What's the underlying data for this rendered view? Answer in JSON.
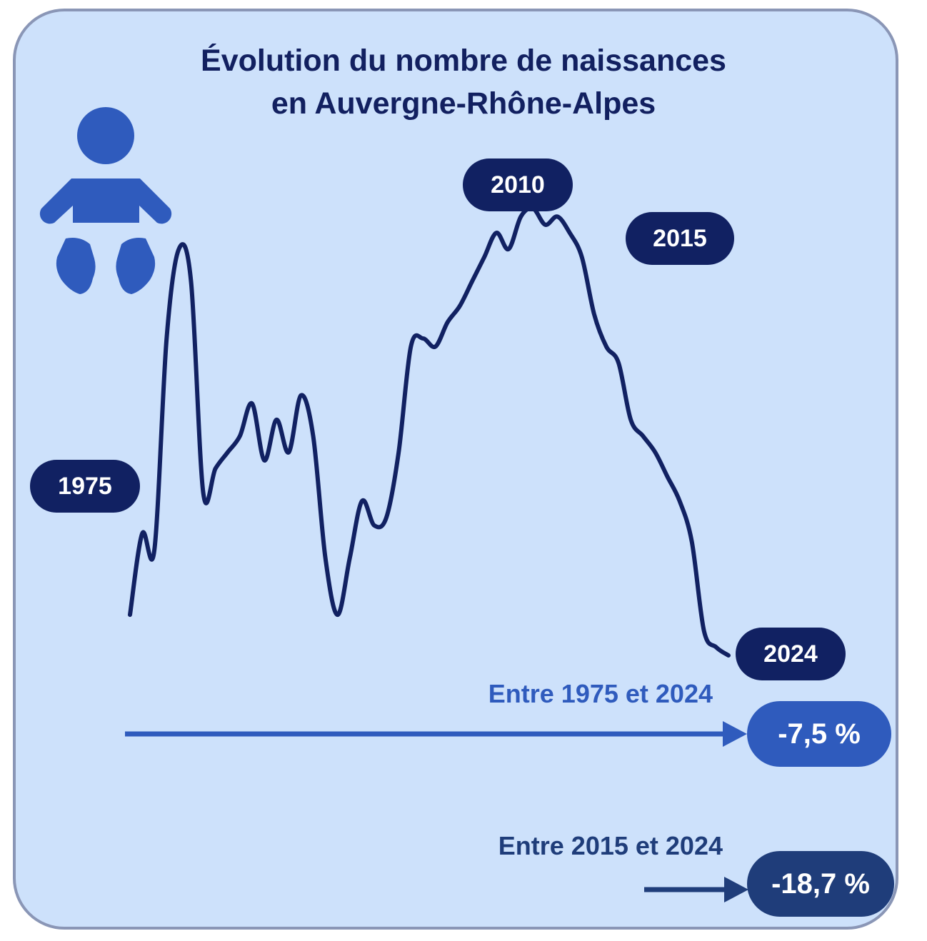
{
  "title": {
    "line1": "Évolution du nombre de naissances",
    "line2": "en Auvergne-Rhône-Alpes"
  },
  "icon": "baby-icon",
  "colors": {
    "background": "#cde1fb",
    "border": "#8a96b6",
    "navy": "#112162",
    "accent_blue": "#2f5bbd",
    "dark_blue": "#1f3d7a"
  },
  "chart_data": {
    "type": "line",
    "title": "Évolution du nombre de naissances en Auvergne-Rhône-Alpes",
    "xlabel": "",
    "ylabel": "",
    "grid": false,
    "axes_visible": false,
    "highlighted_years": [
      "1975",
      "2010",
      "2015",
      "2024"
    ],
    "series": [
      {
        "relative_index": [
          0.5,
          0.6,
          0.58,
          0.84,
          0.95,
          0.91,
          0.65,
          0.68,
          0.7,
          0.72,
          0.76,
          0.69,
          0.74,
          0.7,
          0.77,
          0.72,
          0.57,
          0.5,
          0.57,
          0.64,
          0.61,
          0.62,
          0.7,
          0.83,
          0.84,
          0.83,
          0.86,
          0.88,
          0.91,
          0.94,
          0.97,
          0.95,
          0.99,
          1.0,
          0.98,
          0.99,
          0.97,
          0.94,
          0.87,
          0.83,
          0.81,
          0.74,
          0.72,
          0.7,
          0.67,
          0.64,
          0.59,
          0.48,
          0.46,
          0.45
        ]
      }
    ]
  },
  "comparisons": [
    {
      "label": "Entre 1975 et 2024",
      "value": "-7,5 %"
    },
    {
      "label": "Entre 2015 et 2024",
      "value": "-18,7 %"
    }
  ]
}
